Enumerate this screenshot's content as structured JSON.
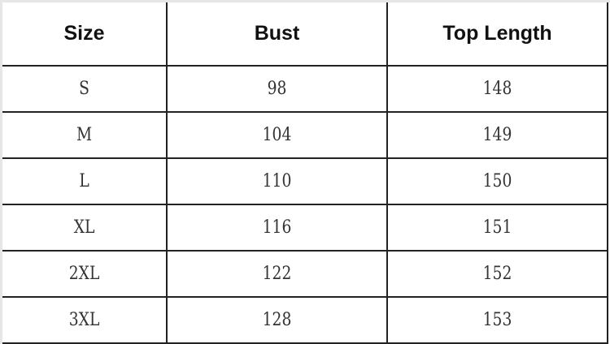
{
  "headers": [
    "Size",
    "Bust",
    "Top Length"
  ],
  "rows": [
    [
      "S",
      "98",
      "148"
    ],
    [
      "M",
      "104",
      "149"
    ],
    [
      "L",
      "110",
      "150"
    ],
    [
      "XL",
      "116",
      "151"
    ],
    [
      "2XL",
      "122",
      "152"
    ],
    [
      "3XL",
      "128",
      "153"
    ]
  ]
}
